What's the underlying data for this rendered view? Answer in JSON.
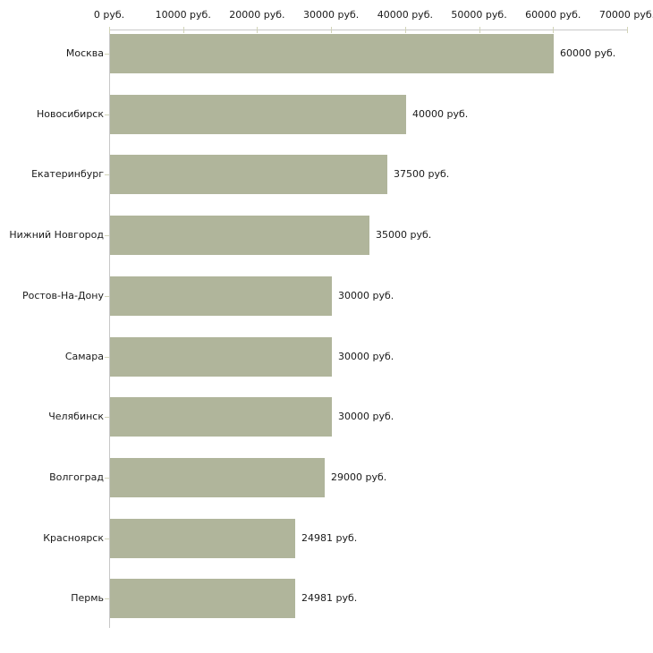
{
  "chart_data": {
    "type": "bar",
    "orientation": "horizontal",
    "title": "",
    "xlabel": "",
    "ylabel": "",
    "xlim": [
      0,
      70000
    ],
    "grid": false,
    "legend": false,
    "unit_suffix": " руб.",
    "colors": {
      "bar": "#b0b59b",
      "tick": "#d2d4b8",
      "axis": "#c8c8c8",
      "text": "#1a1a1a"
    },
    "x_ticks": [
      {
        "value": 0,
        "label": "0 руб."
      },
      {
        "value": 10000,
        "label": "10000 руб."
      },
      {
        "value": 20000,
        "label": "20000 руб."
      },
      {
        "value": 30000,
        "label": "30000 руб."
      },
      {
        "value": 40000,
        "label": "40000 руб."
      },
      {
        "value": 50000,
        "label": "50000 руб."
      },
      {
        "value": 60000,
        "label": "60000 руб."
      },
      {
        "value": 70000,
        "label": "70000 руб."
      }
    ],
    "categories": [
      "Москва",
      "Новосибирск",
      "Екатеринбург",
      "Нижний Новгород",
      "Ростов-На-Дону",
      "Самара",
      "Челябинск",
      "Волгоград",
      "Красноярск",
      "Пермь"
    ],
    "values": [
      60000,
      40000,
      37500,
      35000,
      30000,
      30000,
      30000,
      29000,
      24981,
      24981
    ],
    "rows": [
      {
        "city": "Москва",
        "value": 60000,
        "label": "60000 руб."
      },
      {
        "city": "Новосибирск",
        "value": 40000,
        "label": "40000 руб."
      },
      {
        "city": "Екатеринбург",
        "value": 37500,
        "label": "37500 руб."
      },
      {
        "city": "Нижний Новгород",
        "value": 35000,
        "label": "35000 руб."
      },
      {
        "city": "Ростов-На-Дону",
        "value": 30000,
        "label": "30000 руб."
      },
      {
        "city": "Самара",
        "value": 30000,
        "label": "30000 руб."
      },
      {
        "city": "Челябинск",
        "value": 30000,
        "label": "30000 руб."
      },
      {
        "city": "Волгоград",
        "value": 29000,
        "label": "29000 руб."
      },
      {
        "city": "Красноярск",
        "value": 24981,
        "label": "24981 руб."
      },
      {
        "city": "Пермь",
        "value": 24981,
        "label": "24981 руб."
      }
    ]
  }
}
